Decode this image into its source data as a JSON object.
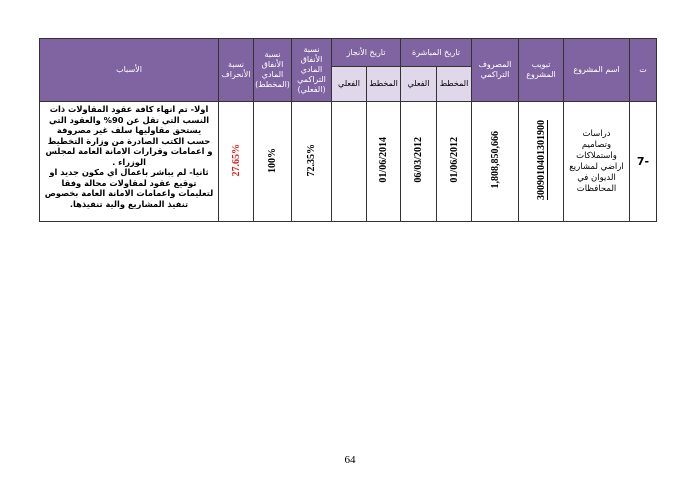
{
  "headers": {
    "t": "ت",
    "name": "اسم المشروع",
    "code": "تبويب المشروع",
    "spent": "المصروف التراكمي",
    "start": "تاريخ المباشرة",
    "completion": "تاريخ الأنجاز",
    "planned": "المخطط",
    "actual": "الفعلي",
    "cum_ratio": "نسبة الأنفاق المادي التراكمي (الفعلي)",
    "plan_ratio": "نسبة الأنفاق المادي (المخطط)",
    "deviation": "نسبة الأنحراف",
    "reasons": "الأسباب"
  },
  "row": {
    "t": "-7",
    "name": "دراسات وتصاميم واستملاكات اراضي لمشاريع الديوان في المحافظات",
    "code": "3009010401301900",
    "spent": "1,808,850,666",
    "start_planned": "01/06/2012",
    "start_actual": "06/03/2012",
    "completion_planned": "01/06/2014",
    "completion_actual": "",
    "cum_ratio": "72.35%",
    "plan_ratio": "100%",
    "deviation": "27.65%",
    "reasons_1": "اولا- تم انهاء كافة عقود المقاولات ذات النسب التي تقل عن 90% والعقود التي يستحق مقاوليها سلف غير مصروفة حسب الكتب الصادرة من وزارة التخطيط و اعمامات وقرارات الامانة العامة لمجلس الوزراء .",
    "reasons_2": "ثانيا- لم يباشر باعمال اي مكون جديد او توقيع عقود لمقاولات محالة وفقا لتعليمات واعمامات الامانة العامة بخصوص تنفيذ المشاريع والية تنفيذها."
  },
  "page_number": "64",
  "colors": {
    "header": "#8064a2",
    "subheader": "#e0d8ea",
    "deviation": "#e02020"
  }
}
